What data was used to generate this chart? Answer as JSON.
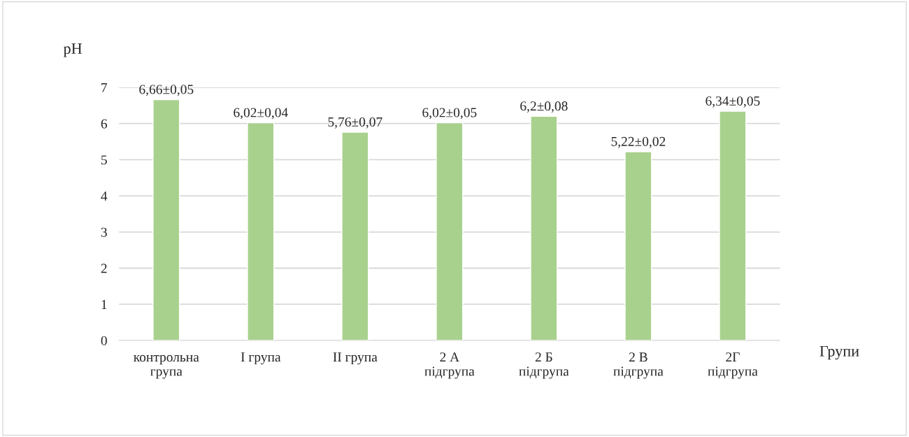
{
  "chart_data": {
    "type": "bar",
    "xlabel": "Групи",
    "ylabel": "pH",
    "categories": [
      "контрольна\nгрупа",
      "І група",
      "ІІ група",
      "2 А\nпідгрупа",
      "2 Б\nпідгрупа",
      "2 В\nпідгрупа",
      "2Г\nпідгрупа"
    ],
    "values": [
      6.66,
      6.02,
      5.76,
      6.02,
      6.2,
      5.22,
      6.34
    ],
    "value_labels": [
      "6,66±0,05",
      "6,02±0,04",
      "5,76±0,07",
      "6,02±0,05",
      "6,2±0,08",
      "5,22±0,02",
      "6,34±0,05"
    ],
    "color": "#a9d18e",
    "ylim": [
      0,
      7
    ],
    "yticks": [
      0,
      1,
      2,
      3,
      4,
      5,
      6,
      7
    ],
    "grid": "y",
    "legend": false
  }
}
